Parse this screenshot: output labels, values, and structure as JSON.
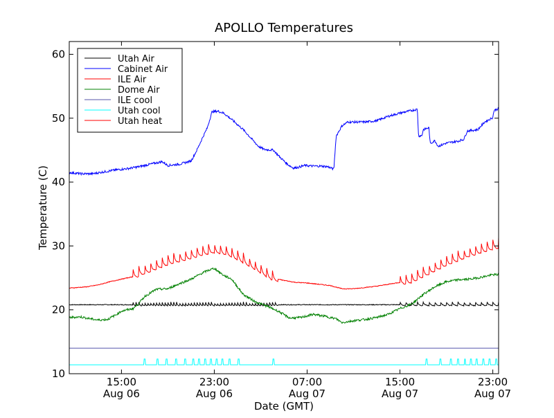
{
  "chart_data": {
    "type": "line",
    "title": "APOLLO Temperatures",
    "xlabel": "Date (GMT)",
    "ylabel": "Temperature (C)",
    "xlim": [
      10.5,
      47.5
    ],
    "ylim": [
      10,
      62
    ],
    "grid": false,
    "legend_position": "top-left",
    "xticks": [
      {
        "x": 15,
        "time": "15:00",
        "date": "Aug 06"
      },
      {
        "x": 23,
        "time": "23:00",
        "date": "Aug 06"
      },
      {
        "x": 31,
        "time": "07:00",
        "date": "Aug 07"
      },
      {
        "x": 39,
        "time": "15:00",
        "date": "Aug 07"
      },
      {
        "x": 47,
        "time": "23:00",
        "date": "Aug 07"
      }
    ],
    "yticks": [
      10,
      20,
      30,
      40,
      50,
      60
    ],
    "ytick_labels": [
      "10",
      "20",
      "30",
      "40",
      "50",
      "60"
    ],
    "series": [
      {
        "name": "Utah Air",
        "color": "#000000",
        "style": "sawtooth",
        "baseline": 20.8,
        "points": [
          [
            10.5,
            20.8
          ],
          [
            47.5,
            20.8
          ]
        ],
        "spikes": [
          {
            "x": 27.2,
            "dy": -0.6
          }
        ],
        "teeth_windows": [
          [
            16,
            28.5,
            0.6,
            0.25
          ],
          [
            39,
            47.5,
            0.6,
            0.5
          ]
        ]
      },
      {
        "name": "Cabinet Air",
        "color": "#0000ff",
        "style": "noisy",
        "points": [
          [
            10.5,
            41.5
          ],
          [
            11.5,
            41.3
          ],
          [
            12.5,
            41.3
          ],
          [
            13.5,
            41.6
          ],
          [
            14.5,
            41.9
          ],
          [
            15.5,
            42.1
          ],
          [
            16.5,
            42.4
          ],
          [
            17,
            42.6
          ],
          [
            18,
            43.0
          ],
          [
            18.5,
            43.2
          ],
          [
            19,
            42.6
          ],
          [
            20,
            42.8
          ],
          [
            21,
            43.3
          ],
          [
            21.5,
            45
          ],
          [
            22,
            47
          ],
          [
            22.4,
            48.5
          ],
          [
            22.8,
            51.0
          ],
          [
            23.3,
            51.1
          ],
          [
            23.8,
            50.8
          ],
          [
            24.5,
            49.8
          ],
          [
            25.5,
            48.2
          ],
          [
            26.2,
            46.8
          ],
          [
            26.8,
            45.6
          ],
          [
            27.3,
            45.1
          ],
          [
            28.1,
            45.0
          ],
          [
            28.6,
            44.0
          ],
          [
            29.3,
            42.8
          ],
          [
            29.8,
            42.2
          ],
          [
            30.2,
            42.3
          ],
          [
            30.8,
            42.6
          ],
          [
            31.5,
            42.5
          ],
          [
            32.2,
            42.5
          ],
          [
            32.8,
            42.4
          ],
          [
            33.3,
            42.0
          ],
          [
            33.5,
            47.2
          ],
          [
            34.0,
            48.8
          ],
          [
            34.5,
            49.4
          ],
          [
            36,
            49.4
          ],
          [
            37,
            49.6
          ],
          [
            38,
            50.3
          ],
          [
            39,
            50.8
          ],
          [
            40,
            51.2
          ],
          [
            40.5,
            51.4
          ],
          [
            40.6,
            47.2
          ],
          [
            40.9,
            47.3
          ],
          [
            41.0,
            48.2
          ],
          [
            41.5,
            48.5
          ],
          [
            41.6,
            46.0
          ],
          [
            42.0,
            46.5
          ],
          [
            42.3,
            45.6
          ],
          [
            43,
            46.1
          ],
          [
            44,
            46.4
          ],
          [
            44.5,
            46.7
          ],
          [
            44.8,
            48
          ],
          [
            45.7,
            48.2
          ],
          [
            46.3,
            49.4
          ],
          [
            47,
            50.1
          ],
          [
            47.1,
            51.2
          ],
          [
            47.5,
            51.5
          ]
        ]
      },
      {
        "name": "ILE Air",
        "color": "#ff0000",
        "style": "sawtooth",
        "baseline": 0,
        "points": [
          [
            10.5,
            23.4
          ],
          [
            12,
            23.6
          ],
          [
            13,
            23.9
          ],
          [
            14,
            24.4
          ],
          [
            15,
            24.8
          ],
          [
            16,
            25.2
          ],
          [
            17,
            26.0
          ],
          [
            18,
            26.7
          ],
          [
            19,
            27.4
          ],
          [
            20,
            27.9
          ],
          [
            21,
            28.4
          ],
          [
            22,
            28.9
          ],
          [
            23,
            29.3
          ],
          [
            24,
            29.0
          ],
          [
            25,
            28.2
          ],
          [
            26,
            27.2
          ],
          [
            27,
            26.1
          ],
          [
            28,
            25.0
          ],
          [
            29,
            24.6
          ],
          [
            30,
            24.3
          ],
          [
            31,
            24.2
          ],
          [
            32,
            24.0
          ],
          [
            33,
            23.8
          ],
          [
            34,
            23.3
          ],
          [
            35,
            23.3
          ],
          [
            36,
            23.5
          ],
          [
            37,
            23.7
          ],
          [
            38,
            24.0
          ],
          [
            39,
            24.3
          ],
          [
            40,
            24.6
          ],
          [
            41,
            25.5
          ],
          [
            42,
            26.4
          ],
          [
            43,
            27.3
          ],
          [
            44,
            28.0
          ],
          [
            45,
            28.7
          ],
          [
            46,
            29.3
          ],
          [
            47,
            29.8
          ],
          [
            47.5,
            30.0
          ]
        ],
        "teeth_windows": [
          [
            16,
            28.5,
            1.7,
            0.5
          ],
          [
            39,
            47.5,
            1.7,
            0.5
          ]
        ]
      },
      {
        "name": "Dome Air",
        "color": "#008000",
        "style": "noisy",
        "points": [
          [
            10.5,
            18.8
          ],
          [
            11.5,
            18.9
          ],
          [
            12,
            18.7
          ],
          [
            13,
            18.4
          ],
          [
            13.8,
            18.5
          ],
          [
            14.5,
            19.2
          ],
          [
            15,
            19.8
          ],
          [
            16,
            20.2
          ],
          [
            16.5,
            21.0
          ],
          [
            17,
            22.1
          ],
          [
            18,
            23.2
          ],
          [
            19,
            23.3
          ],
          [
            20,
            24.1
          ],
          [
            21,
            24.8
          ],
          [
            22,
            25.8
          ],
          [
            22.5,
            26.2
          ],
          [
            23,
            26.5
          ],
          [
            23.8,
            25.4
          ],
          [
            24.5,
            24.8
          ],
          [
            25.5,
            22.4
          ],
          [
            26.5,
            21.3
          ],
          [
            27.5,
            20.6
          ],
          [
            28.5,
            19.8
          ],
          [
            29.5,
            18.7
          ],
          [
            30.5,
            18.8
          ],
          [
            31.5,
            19.3
          ],
          [
            32.5,
            19.0
          ],
          [
            33.5,
            18.6
          ],
          [
            34,
            18.0
          ],
          [
            35,
            18.3
          ],
          [
            36,
            18.5
          ],
          [
            37,
            18.8
          ],
          [
            38,
            19.3
          ],
          [
            39,
            20.2
          ],
          [
            40,
            20.9
          ],
          [
            41,
            22.4
          ],
          [
            42,
            23.6
          ],
          [
            43,
            24.4
          ],
          [
            44,
            24.7
          ],
          [
            45,
            24.8
          ],
          [
            46,
            25.1
          ],
          [
            47,
            25.5
          ],
          [
            47.5,
            25.5
          ]
        ]
      },
      {
        "name": "ILE cool",
        "color": "#5555aa",
        "style": "flat",
        "points": [
          [
            10.5,
            14.0
          ],
          [
            47.5,
            14.0
          ]
        ]
      },
      {
        "name": "Utah cool",
        "color": "#00ffff",
        "style": "pulses",
        "baseline": 11.4,
        "points": [
          [
            10.5,
            11.4
          ],
          [
            47.5,
            11.4
          ]
        ],
        "spikes_x": [
          17.0,
          18.1,
          18.9,
          19.7,
          20.5,
          21.2,
          21.7,
          22.2,
          22.7,
          23.2,
          23.7,
          24.3,
          25.1,
          28.1,
          41.3,
          42.5,
          43.4,
          44.0,
          44.6,
          45.1,
          45.6,
          46.2,
          46.7,
          47.3
        ],
        "spike_height": 12.3
      },
      {
        "name": "Utah heat",
        "color": "#ff0000",
        "style": "hidden",
        "points": []
      }
    ]
  }
}
